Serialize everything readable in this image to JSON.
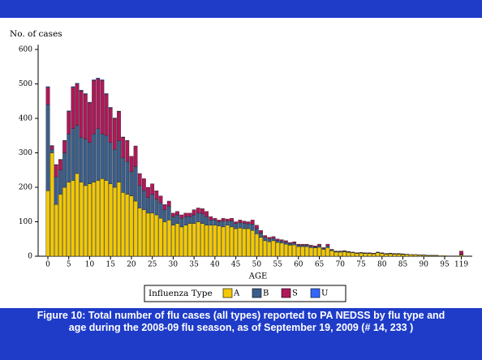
{
  "chart_data": {
    "type": "stacked_bar",
    "y_label": "No. of cases",
    "x_label": "AGE",
    "legend_title": "Influenza Type",
    "caption": "Figure 10: Total number of flu cases (all types) reported to PA NEDSS by flu type and age during the 2008-09 flu season, as of September 19, 2009 (# 14, 233 )",
    "ylim": [
      0,
      600
    ],
    "yticks": [
      0,
      100,
      200,
      300,
      400,
      500,
      600
    ],
    "categories": [
      "0",
      null,
      null,
      null,
      null,
      "5",
      null,
      null,
      null,
      null,
      "10",
      null,
      null,
      null,
      null,
      "15",
      null,
      null,
      null,
      null,
      "20",
      null,
      null,
      null,
      null,
      "25",
      null,
      null,
      null,
      null,
      "30",
      null,
      null,
      null,
      null,
      "35",
      null,
      null,
      null,
      null,
      "40",
      null,
      null,
      null,
      null,
      "45",
      null,
      null,
      null,
      null,
      "50",
      null,
      null,
      null,
      null,
      "55",
      null,
      null,
      null,
      null,
      "60",
      null,
      null,
      null,
      null,
      "65",
      null,
      null,
      null,
      null,
      "70",
      null,
      null,
      null,
      null,
      "75",
      null,
      null,
      null,
      null,
      "80",
      null,
      null,
      null,
      null,
      "85",
      null,
      null,
      null,
      null,
      "90",
      null,
      null,
      null,
      null,
      "95",
      null,
      null,
      null,
      "119"
    ],
    "series": [
      {
        "name": "A",
        "color": "#f2c800",
        "values": [
          190,
          300,
          150,
          180,
          200,
          215,
          220,
          240,
          215,
          205,
          210,
          215,
          220,
          225,
          220,
          210,
          200,
          215,
          185,
          180,
          175,
          160,
          140,
          135,
          125,
          125,
          120,
          110,
          100,
          105,
          90,
          95,
          85,
          90,
          95,
          95,
          100,
          95,
          90,
          90,
          90,
          88,
          85,
          90,
          85,
          80,
          82,
          80,
          80,
          75,
          65,
          55,
          45,
          42,
          45,
          40,
          38,
          35,
          32,
          33,
          28,
          28,
          28,
          25,
          24,
          26,
          20,
          25,
          16,
          12,
          12,
          13,
          11,
          10,
          8,
          9,
          8,
          8,
          7,
          10,
          8,
          6,
          7,
          6,
          6,
          5,
          5,
          4,
          4,
          3,
          3,
          2,
          2,
          2,
          2,
          2,
          1,
          1,
          1,
          3
        ]
      },
      {
        "name": "B",
        "color": "#3b5f8c",
        "values": [
          250,
          10,
          80,
          70,
          100,
          140,
          150,
          140,
          130,
          135,
          120,
          140,
          150,
          130,
          130,
          120,
          110,
          120,
          100,
          95,
          70,
          100,
          65,
          55,
          45,
          55,
          45,
          45,
          35,
          40,
          25,
          25,
          25,
          25,
          20,
          25,
          25,
          28,
          25,
          15,
          15,
          12,
          17,
          12,
          17,
          15,
          15,
          16,
          14,
          18,
          15,
          12,
          10,
          8,
          7,
          6,
          6,
          6,
          5,
          5,
          4,
          4,
          4,
          4,
          3,
          5,
          3,
          5,
          2,
          2,
          2,
          2,
          2,
          1,
          1,
          1,
          1,
          1,
          1,
          1,
          1,
          1,
          1,
          1,
          1,
          1,
          1,
          0,
          1,
          1,
          1,
          1,
          1,
          1,
          0,
          0,
          0,
          0,
          0,
          2
        ]
      },
      {
        "name": "S",
        "color": "#b0185a",
        "values": [
          50,
          10,
          35,
          30,
          35,
          65,
          120,
          120,
          135,
          130,
          115,
          155,
          145,
          155,
          120,
          100,
          90,
          85,
          60,
          60,
          45,
          60,
          35,
          35,
          30,
          30,
          25,
          20,
          15,
          15,
          10,
          10,
          10,
          10,
          10,
          15,
          15,
          15,
          15,
          10,
          5,
          5,
          8,
          6,
          8,
          5,
          8,
          6,
          6,
          12,
          10,
          8,
          5,
          5,
          5,
          4,
          4,
          4,
          3,
          4,
          3,
          3,
          3,
          3,
          3,
          4,
          2,
          5,
          2,
          1,
          1,
          1,
          1,
          1,
          1,
          1,
          1,
          1,
          1,
          1,
          1,
          1,
          1,
          1,
          1,
          1,
          0,
          1,
          0,
          0,
          0,
          0,
          0,
          0,
          0,
          0,
          0,
          0,
          0,
          10
        ]
      },
      {
        "name": "U",
        "color": "#3366ff",
        "values": [
          2,
          1,
          1,
          1,
          1,
          2,
          2,
          2,
          2,
          2,
          2,
          2,
          2,
          2,
          2,
          2,
          1,
          1,
          1,
          1,
          0,
          0,
          0,
          0,
          0,
          0,
          0,
          0,
          0,
          0,
          0,
          0,
          0,
          0,
          0,
          0,
          0,
          0,
          0,
          0,
          0,
          0,
          0,
          0,
          0,
          0,
          0,
          0,
          0,
          0,
          0,
          0,
          0,
          0,
          0,
          0,
          0,
          0,
          0,
          0,
          0,
          0,
          0,
          0,
          0,
          0,
          0,
          0,
          0,
          0,
          0,
          0,
          0,
          0,
          0,
          0,
          0,
          0,
          0,
          0,
          0,
          0,
          0,
          0,
          0,
          0,
          0,
          0,
          0,
          0,
          0,
          0,
          0,
          0,
          0,
          0,
          0,
          0,
          0,
          0
        ]
      }
    ]
  }
}
